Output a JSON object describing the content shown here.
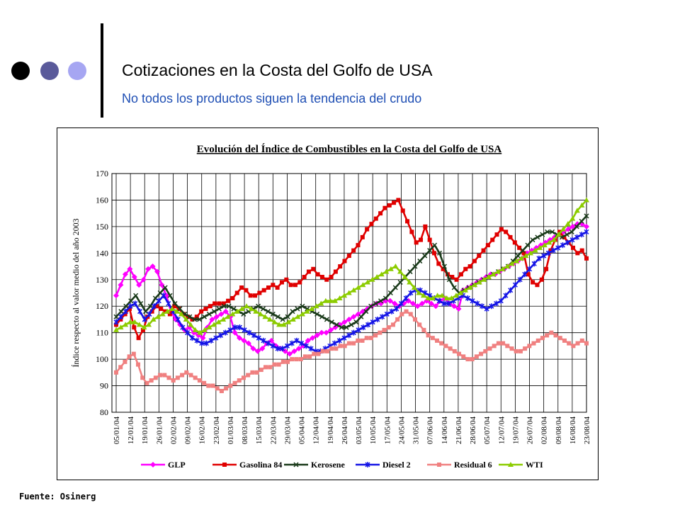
{
  "slide": {
    "title": "Cotizaciones en la Costa del Golfo de USA",
    "subtitle": "No todos los productos siguen la tendencia del crudo",
    "source": "Fuente: Osinerg"
  },
  "colors": {
    "accent_dark": "#000000",
    "accent_mid": "#5a5a9a",
    "accent_light": "#a6a6f2",
    "subtitle": "#1f4fb4"
  },
  "chart_data": {
    "type": "line",
    "title": "Evolución del Índice de Combustibles en la Costa del Golfo de USA",
    "xlabel": "",
    "ylabel": "Índice respecto al valor medio del año 2003",
    "ylim": [
      80,
      170
    ],
    "yticks": [
      80,
      90,
      100,
      110,
      120,
      130,
      140,
      150,
      160,
      170
    ],
    "grid": true,
    "legend_position": "bottom",
    "x_tick_labels": [
      "05/01/04",
      "12/01/04",
      "19/01/04",
      "26/01/04",
      "02/02/04",
      "09/02/04",
      "16/02/04",
      "23/02/04",
      "01/03/04",
      "08/03/04",
      "15/03/04",
      "22/03/04",
      "29/03/04",
      "05/04/04",
      "12/04/04",
      "19/04/04",
      "26/04/04",
      "03/05/04",
      "10/05/04",
      "17/05/04",
      "24/05/04",
      "31/05/04",
      "07/06/04",
      "14/06/04",
      "21/06/04",
      "28/06/04",
      "05/07/04",
      "12/07/04",
      "19/07/04",
      "26/07/04",
      "02/08/04",
      "09/08/04",
      "16/08/04",
      "23/08/04"
    ],
    "series": [
      {
        "name": "GLP",
        "color": "#ff00ff",
        "marker": "diamond",
        "values": [
          124,
          128,
          132,
          134,
          131,
          128,
          130,
          134,
          135,
          133,
          128,
          124,
          118,
          115,
          113,
          111,
          112,
          110,
          109,
          108,
          112,
          115,
          116,
          117,
          118,
          116,
          110,
          108,
          107,
          106,
          104,
          103,
          104,
          106,
          107,
          105,
          104,
          103,
          102,
          103,
          104,
          105,
          107,
          108,
          109,
          110,
          110,
          111,
          112,
          113,
          114,
          115,
          116,
          117,
          118,
          119,
          120,
          121,
          121,
          122,
          122,
          121,
          120,
          121,
          122,
          121,
          120,
          121,
          122,
          121,
          120,
          122,
          123,
          121,
          120,
          119,
          126,
          127,
          128,
          129,
          130,
          131,
          132,
          132,
          133,
          134,
          135,
          136,
          137,
          138,
          140,
          141,
          142,
          143,
          144,
          145,
          146,
          147,
          148,
          149,
          150,
          151,
          151,
          150
        ]
      },
      {
        "name": "Gasolina 84",
        "color": "#e00000",
        "marker": "square",
        "values": [
          113,
          115,
          117,
          119,
          112,
          108,
          111,
          116,
          118,
          120,
          119,
          118,
          117,
          120,
          119,
          117,
          116,
          115,
          116,
          118,
          119,
          120,
          121,
          121,
          121,
          122,
          123,
          125,
          127,
          126,
          124,
          124,
          125,
          126,
          127,
          128,
          127,
          129,
          130,
          128,
          128,
          129,
          131,
          133,
          134,
          132,
          131,
          130,
          131,
          133,
          135,
          137,
          139,
          141,
          143,
          146,
          149,
          151,
          153,
          155,
          157,
          158,
          159,
          160,
          156,
          152,
          148,
          144,
          145,
          150,
          145,
          140,
          136,
          134,
          132,
          131,
          130,
          132,
          134,
          135,
          137,
          139,
          141,
          143,
          145,
          147,
          149,
          148,
          146,
          144,
          142,
          140,
          132,
          129,
          128,
          130,
          134,
          141,
          145,
          148,
          146,
          144,
          142,
          140,
          141,
          138
        ]
      },
      {
        "name": "Kerosene",
        "color": "#1a3a1a",
        "marker": "x",
        "values": [
          116,
          118,
          120,
          122,
          124,
          121,
          118,
          120,
          123,
          125,
          127,
          124,
          121,
          119,
          117,
          116,
          115,
          115,
          116,
          117,
          118,
          119,
          120,
          120,
          119,
          118,
          117,
          118,
          119,
          120,
          119,
          118,
          117,
          116,
          115,
          116,
          118,
          119,
          120,
          119,
          118,
          117,
          116,
          115,
          114,
          113,
          112,
          112,
          113,
          114,
          116,
          118,
          120,
          121,
          122,
          123,
          125,
          127,
          129,
          131,
          133,
          135,
          137,
          139,
          141,
          143,
          140,
          135,
          130,
          127,
          125,
          126,
          127,
          128,
          129,
          130,
          131,
          132,
          133,
          134,
          135,
          137,
          139,
          141,
          143,
          145,
          146,
          147,
          148,
          148,
          147,
          146,
          147,
          148,
          150,
          152,
          154
        ]
      },
      {
        "name": "Diesel 2",
        "color": "#1414e6",
        "marker": "asterisk",
        "values": [
          114,
          116,
          118,
          120,
          121,
          118,
          115,
          117,
          120,
          122,
          124,
          121,
          118,
          115,
          112,
          110,
          108,
          107,
          106,
          106,
          107,
          108,
          109,
          110,
          111,
          112,
          112,
          111,
          110,
          109,
          108,
          107,
          106,
          105,
          104,
          104,
          105,
          106,
          107,
          106,
          105,
          104,
          103,
          103,
          104,
          105,
          106,
          107,
          108,
          109,
          110,
          111,
          112,
          113,
          114,
          115,
          116,
          117,
          118,
          119,
          121,
          123,
          125,
          126,
          126,
          125,
          124,
          123,
          122,
          121,
          121,
          122,
          123,
          124,
          123,
          122,
          121,
          120,
          119,
          120,
          121,
          122,
          124,
          126,
          128,
          130,
          132,
          134,
          136,
          138,
          139,
          140,
          141,
          142,
          143,
          144,
          145,
          146,
          147,
          148
        ]
      },
      {
        "name": "Residual 6",
        "color": "#f08080",
        "marker": "square",
        "values": [
          95,
          97,
          99,
          101,
          102,
          98,
          93,
          91,
          92,
          93,
          94,
          94,
          93,
          92,
          93,
          94,
          95,
          94,
          93,
          92,
          91,
          90,
          90,
          89,
          88,
          89,
          90,
          91,
          92,
          93,
          94,
          95,
          95,
          96,
          97,
          97,
          98,
          98,
          99,
          99,
          100,
          100,
          100,
          101,
          101,
          102,
          102,
          103,
          103,
          104,
          104,
          105,
          105,
          106,
          106,
          107,
          107,
          108,
          108,
          109,
          110,
          111,
          112,
          113,
          115,
          117,
          118,
          117,
          115,
          113,
          111,
          109,
          108,
          107,
          106,
          105,
          104,
          103,
          102,
          101,
          100,
          100,
          101,
          102,
          103,
          104,
          105,
          106,
          106,
          105,
          104,
          103,
          103,
          104,
          105,
          106,
          107,
          108,
          109,
          110,
          109,
          108,
          107,
          106,
          105,
          106,
          107,
          106
        ]
      },
      {
        "name": "WTI",
        "color": "#8ccc00",
        "marker": "triangle",
        "values": [
          111,
          112,
          113,
          114,
          114,
          113,
          112,
          113,
          115,
          116,
          117,
          118,
          119,
          118,
          117,
          115,
          113,
          111,
          110,
          111,
          112,
          113,
          114,
          115,
          116,
          117,
          118,
          119,
          120,
          119,
          118,
          117,
          116,
          115,
          114,
          113,
          113,
          114,
          115,
          116,
          117,
          118,
          119,
          120,
          121,
          122,
          122,
          122,
          123,
          124,
          125,
          126,
          127,
          128,
          129,
          130,
          131,
          132,
          133,
          134,
          135,
          133,
          131,
          129,
          127,
          125,
          124,
          123,
          123,
          124,
          124,
          123,
          123,
          124,
          125,
          126,
          127,
          128,
          129,
          130,
          131,
          132,
          133,
          134,
          135,
          136,
          137,
          138,
          139,
          140,
          141,
          142,
          143,
          144,
          145,
          147,
          149,
          151,
          153,
          156,
          158,
          160
        ]
      }
    ]
  }
}
